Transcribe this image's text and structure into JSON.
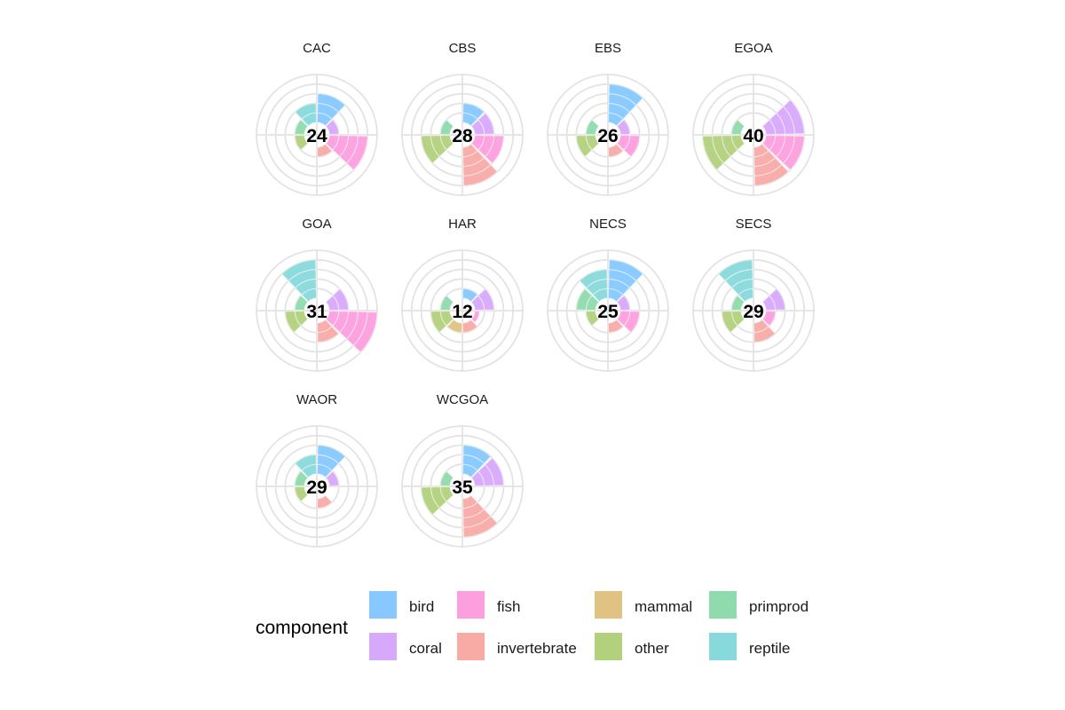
{
  "chart_data": {
    "type": "polar-bar",
    "facet_by": "region",
    "components": [
      {
        "name": "bird",
        "color": "#86c8ff"
      },
      {
        "name": "coral",
        "color": "#d7a9fb"
      },
      {
        "name": "fish",
        "color": "#fd9ede"
      },
      {
        "name": "invertebrate",
        "color": "#f8aaa5"
      },
      {
        "name": "mammal",
        "color": "#e0c283"
      },
      {
        "name": "other",
        "color": "#b2d17d"
      },
      {
        "name": "primprod",
        "color": "#8fdbad"
      },
      {
        "name": "reptile",
        "color": "#88d9dc"
      }
    ],
    "value_max": 5,
    "grid_rings": 5,
    "panels": [
      {
        "region": "CAC",
        "score": "24",
        "values": {
          "bird": 3,
          "coral": 1,
          "fish": 4,
          "invertebrate": 1,
          "mammal": 0,
          "other": 1,
          "primprod": 1,
          "reptile": 2
        }
      },
      {
        "region": "CBS",
        "score": "28",
        "values": {
          "bird": 2,
          "coral": 2,
          "fish": 3,
          "invertebrate": 4,
          "mammal": 0,
          "other": 3,
          "primprod": 1,
          "reptile": 0
        }
      },
      {
        "region": "EBS",
        "score": "26",
        "values": {
          "bird": 4,
          "coral": 1,
          "fish": 2,
          "invertebrate": 1,
          "mammal": 0,
          "other": 2,
          "primprod": 1,
          "reptile": 0
        }
      },
      {
        "region": "EGOA",
        "score": "40",
        "values": {
          "bird": 0,
          "coral": 4,
          "fish": 4,
          "invertebrate": 4,
          "mammal": 0,
          "other": 4,
          "primprod": 1,
          "reptile": 0
        }
      },
      {
        "region": "GOA",
        "score": "31",
        "values": {
          "bird": 0,
          "coral": 2,
          "fish": 5,
          "invertebrate": 2,
          "mammal": 0,
          "other": 2,
          "primprod": 1,
          "reptile": 4
        }
      },
      {
        "region": "HAR",
        "score": "12",
        "values": {
          "bird": 1,
          "coral": 2,
          "fish": 0.5,
          "invertebrate": 1,
          "mammal": 1,
          "other": 2,
          "primprod": 1,
          "reptile": 0
        }
      },
      {
        "region": "NECS",
        "score": "25",
        "values": {
          "bird": 4,
          "coral": 1,
          "fish": 2,
          "invertebrate": 1,
          "mammal": 0,
          "other": 1,
          "primprod": 2,
          "reptile": 3
        }
      },
      {
        "region": "SECS",
        "score": "29",
        "values": {
          "bird": 0,
          "coral": 2,
          "fish": 1,
          "invertebrate": 2,
          "mammal": 0,
          "other": 2,
          "primprod": 1,
          "reptile": 4
        }
      },
      {
        "region": "WAOR",
        "score": "29",
        "values": {
          "bird": 3,
          "coral": 1,
          "fish": 0,
          "invertebrate": 1,
          "mammal": 0,
          "other": 1,
          "primprod": 1,
          "reptile": 2
        }
      },
      {
        "region": "WCGOA",
        "score": "35",
        "values": {
          "bird": 3,
          "coral": 3,
          "fish": 0,
          "invertebrate": 4,
          "mammal": 0,
          "other": 3,
          "primprod": 1,
          "reptile": 0
        }
      }
    ],
    "legend": {
      "title": "component",
      "position": "bottom"
    }
  }
}
